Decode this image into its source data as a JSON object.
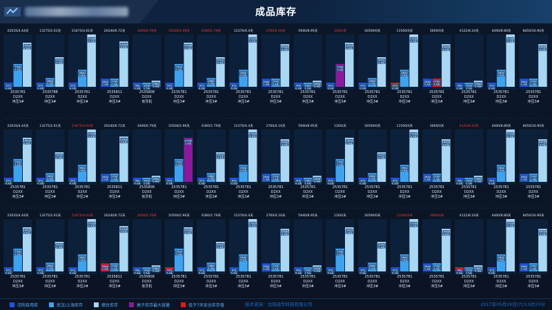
{
  "header": {
    "title": "成品库存"
  },
  "footer": {
    "legend": [
      {
        "label": "沈阳自用库",
        "color": "#1f55e6"
      },
      {
        "label": "武汉/上海库存",
        "color": "#3ea3ef"
      },
      {
        "label": "烟台库存",
        "color": "#a9d6f3"
      },
      {
        "label": "高于库存最大容量",
        "color": "#8a1a9c"
      },
      {
        "label": "低于7天安全库存值",
        "color": "#f01515"
      }
    ],
    "support": "技术支持：沈阳迪华科技有限公司",
    "datetime": "2017年05月20日(六)11时25分"
  },
  "colors": {
    "local": "#1f55e6",
    "wuhan": "#3ea3ef",
    "yantai": "#a9d6f3",
    "over": "#8a1a9c",
    "under": "#f01515",
    "headerNormal": "#e6eefb",
    "headerAlert": "#ff3b3b"
  },
  "chart_data": {
    "type": "bar",
    "series": [
      {
        "name": "沈阳自用库",
        "key": "local"
      },
      {
        "name": "武汉/上海库存",
        "key": "wuhan"
      },
      {
        "name": "烟台库存",
        "key": "yantai"
      }
    ],
    "ylim": [
      0,
      17200
    ],
    "rows": [
      [
        {
          "header": "22635/4.44天",
          "alert": false,
          "local": 675,
          "localDays": "0.3天",
          "wuhan": 7500,
          "wuhanDays": "7.2天",
          "yantai": 14500,
          "yantaiDays": "2.0天",
          "code": "2535781",
          "model": "D2XX",
          "line": "冲压3#"
        },
        {
          "header": "13275/2.61天",
          "alert": false,
          "local": 675,
          "localDays": "0.3天",
          "wuhan": 2880,
          "wuhanDays": "2.9天",
          "yantai": 9720,
          "yantaiDays": "2.4天",
          "code": "2535788",
          "model": "D2XX",
          "line": "冲压3#"
        },
        {
          "header": "23475/4.61天",
          "alert": false,
          "local": 675,
          "localDays": "0.3天",
          "wuhan": 5600,
          "wuhanDays": "5.6天",
          "yantai": 17200,
          "yantaiDays": "2.5天",
          "code": "2535781",
          "model": "D2XX",
          "line": "冲压2#"
        },
        {
          "header": "20240/6.72天",
          "alert": false,
          "local": 2640,
          "localDays": "1.3天",
          "wuhan": 2700,
          "wuhanDays": "2.4天",
          "yantai": 14900,
          "yantaiDays": "3.0天",
          "code": "2535811",
          "model": "D2XX",
          "line": "冲压3#"
        },
        {
          "header": "3400/0.79天",
          "alert": true,
          "local": 400,
          "localDays": "0.3天",
          "wuhan": 1000,
          "wuhanDays": "1.5天",
          "yantai": 2000,
          "yantaiDays": "1.4天",
          "code": "2535808",
          "model": "D2XX",
          "line": "攻牙机"
        },
        {
          "header": "10500/2.96天",
          "alert": true,
          "local": 675,
          "localDays": "0.3天",
          "wuhan": 7500,
          "wuhanDays": "7.2天",
          "yantai": 14500,
          "yantaiDays": "2.0天",
          "code": "2535781",
          "model": "D2XX",
          "line": "冲压3#"
        },
        {
          "header": "6360/1.79天",
          "alert": true,
          "local": 675,
          "localDays": "0.3天",
          "wuhan": 2880,
          "wuhanDays": "2.9天",
          "yantai": 9720,
          "yantaiDays": "2.4天",
          "code": "2535781",
          "model": "D2XX",
          "line": "冲压3#"
        },
        {
          "header": "12370/4.4天",
          "alert": false,
          "local": 675,
          "localDays": "0.3天",
          "wuhan": 5600,
          "wuhanDays": "5.6天",
          "yantai": 17200,
          "yantaiDays": "2.5天",
          "code": "2535781",
          "model": "D2XX",
          "line": "冲压3#"
        },
        {
          "header": "2760/4.16天",
          "alert": true,
          "local": 2640,
          "localDays": "1.3天",
          "wuhan": 2700,
          "wuhanDays": "2.4天",
          "yantai": 14000,
          "yantaiDays": "3.0天",
          "code": "2535781",
          "model": "D2XX",
          "line": "冲压3#"
        },
        {
          "header": "5940/8.95天",
          "alert": false,
          "local": 400,
          "localDays": "0.3天",
          "wuhan": 1000,
          "wuhanDays": "1.5天",
          "yantai": 2000,
          "yantaiDays": "1.4天",
          "code": "2535781",
          "model": "D2XX",
          "line": "冲压3#"
        },
        {
          "header": "1200/天",
          "alert": true,
          "local": 675,
          "localDays": "0.3天",
          "wuhan": 7500,
          "wuhanDays": "7.2天",
          "yantai": 14500,
          "yantaiDays": "2.0天",
          "code": "2535781",
          "model": "D2XX",
          "line": "冲压3#",
          "overStock": "wuhan"
        },
        {
          "header": "16500/0天",
          "alert": false,
          "local": 675,
          "localDays": "0.3天",
          "wuhan": 2880,
          "wuhanDays": "2.9天",
          "yantai": 9720,
          "yantaiDays": "2.4天",
          "code": "2535781",
          "model": "D2XX",
          "line": "冲压3#"
        },
        {
          "header": "11500/0天",
          "alert": false,
          "local": 675,
          "localDays": "0.3天",
          "wuhan": 5600,
          "wuhanDays": "5.6天",
          "yantai": 17200,
          "yantaiDays": "2.5天",
          "code": "2535781",
          "model": "D2XX",
          "line": "冲压3#",
          "underStock": "local"
        },
        {
          "header": "3000/0天",
          "alert": false,
          "local": 2640,
          "localDays": "1.3天",
          "wuhan": 2700,
          "wuhanDays": "2.4天",
          "yantai": 14000,
          "yantaiDays": "3.0天",
          "code": "2535781",
          "model": "D2XX",
          "line": "冲压3#",
          "underStock": "wuhan"
        },
        {
          "header": "4122/8.24天",
          "alert": false,
          "local": 400,
          "localDays": "0.3天",
          "wuhan": 1000,
          "wuhanDays": "1.5天",
          "yantai": 2000,
          "yantaiDays": "1.4天",
          "code": "2535781",
          "model": "D2XX",
          "line": "冲压3#"
        },
        {
          "header": "4400/8.80天",
          "alert": false,
          "local": 675,
          "localDays": "0.3天",
          "wuhan": 5600,
          "wuhanDays": "5.6天",
          "yantai": 17200,
          "yantaiDays": "2.5天",
          "code": "2535781",
          "model": "D2XX",
          "line": "冲压3#"
        },
        {
          "header": "8450/16.90天",
          "alert": false,
          "local": 2640,
          "localDays": "1.3天",
          "wuhan": 2700,
          "wuhanDays": "2.4天",
          "yantai": 14000,
          "yantaiDays": "3.0天",
          "code": "2535781",
          "model": "D2XX",
          "line": "冲压3#"
        }
      ],
      [
        {
          "header": "22635/4.44天",
          "alert": false,
          "local": 675,
          "localDays": "0.3天",
          "wuhan": 7500,
          "wuhanDays": "7.2天",
          "yantai": 14500,
          "yantaiDays": "2.0天",
          "code": "2535781",
          "model": "D2XX",
          "line": "冲压3#"
        },
        {
          "header": "13275/2.61天",
          "alert": false,
          "local": 675,
          "localDays": "0.3天",
          "wuhan": 2880,
          "wuhanDays": "2.9天",
          "yantai": 9720,
          "yantaiDays": "2.4天",
          "code": "2535781",
          "model": "D2XX",
          "line": "冲压3#"
        },
        {
          "header": "23475/4.61天",
          "alert": true,
          "local": 675,
          "localDays": "0.3天",
          "wuhan": 5600,
          "wuhanDays": "5.6天",
          "yantai": 17200,
          "yantaiDays": "2.5天",
          "code": "2535781",
          "model": "D2XX",
          "line": "冲压2#"
        },
        {
          "header": "20240/6.72天",
          "alert": false,
          "local": 2640,
          "localDays": "1.3天",
          "wuhan": 2700,
          "wuhanDays": "2.4天",
          "yantai": 14900,
          "yantaiDays": "3.0天",
          "code": "2535811",
          "model": "D2XX",
          "line": "冲压3#"
        },
        {
          "header": "3400/0.79天",
          "alert": false,
          "local": 400,
          "localDays": "0.3天",
          "wuhan": 1000,
          "wuhanDays": "1.5天",
          "yantai": 2000,
          "yantaiDays": "1.4天",
          "code": "2535808",
          "model": "D2XX",
          "line": "攻牙机"
        },
        {
          "header": "10500/2.96天",
          "alert": false,
          "local": 675,
          "localDays": "0.3天",
          "wuhan": 7500,
          "wuhanDays": "7.2天",
          "yantai": 14500,
          "yantaiDays": "2.0天",
          "code": "2535781",
          "model": "D2XX",
          "line": "冲压3#",
          "overStock": "yantai"
        },
        {
          "header": "6360/1.79天",
          "alert": false,
          "local": 675,
          "localDays": "0.3天",
          "wuhan": 2880,
          "wuhanDays": "2.9天",
          "yantai": 9720,
          "yantaiDays": "2.4天",
          "code": "2535781",
          "model": "D2XX",
          "line": "冲压3#"
        },
        {
          "header": "12370/4.4天",
          "alert": false,
          "local": 675,
          "localDays": "0.3天",
          "wuhan": 5600,
          "wuhanDays": "5.6天",
          "yantai": 17200,
          "yantaiDays": "2.5天",
          "code": "2535781",
          "model": "D2XX",
          "line": "冲压3#"
        },
        {
          "header": "2760/4.16天",
          "alert": false,
          "local": 2640,
          "localDays": "1.3天",
          "wuhan": 2700,
          "wuhanDays": "2.4天",
          "yantai": 14000,
          "yantaiDays": "3.0天",
          "code": "2535781",
          "model": "D2XX",
          "line": "冲压3#"
        },
        {
          "header": "5940/8.95天",
          "alert": false,
          "local": 400,
          "localDays": "0.3天",
          "wuhan": 1000,
          "wuhanDays": "1.5天",
          "yantai": 2000,
          "yantaiDays": "1.4天",
          "code": "2535781",
          "model": "D2XX",
          "line": "冲压3#"
        },
        {
          "header": "1200/天",
          "alert": false,
          "local": 675,
          "localDays": "0.3天",
          "wuhan": 7500,
          "wuhanDays": "7.2天",
          "yantai": 14500,
          "yantaiDays": "2.0天",
          "code": "2535781",
          "model": "D2XX",
          "line": "冲压3#"
        },
        {
          "header": "16500/0天",
          "alert": false,
          "local": 675,
          "localDays": "0.3天",
          "wuhan": 2880,
          "wuhanDays": "2.9天",
          "yantai": 9720,
          "yantaiDays": "2.4天",
          "code": "2535781",
          "model": "D2XX",
          "line": "冲压3#"
        },
        {
          "header": "11500/0天",
          "alert": false,
          "local": 675,
          "localDays": "0.3天",
          "wuhan": 5600,
          "wuhanDays": "5.6天",
          "yantai": 17200,
          "yantaiDays": "2.5天",
          "code": "2535781",
          "model": "D2XX",
          "line": "冲压3#"
        },
        {
          "header": "3000/0天",
          "alert": false,
          "local": 2640,
          "localDays": "1.3天",
          "wuhan": 2700,
          "wuhanDays": "2.4天",
          "yantai": 14000,
          "yantaiDays": "3.0天",
          "code": "2535781",
          "model": "D2XX",
          "line": "冲压3#"
        },
        {
          "header": "4122/8.24天",
          "alert": true,
          "local": 400,
          "localDays": "0.3天",
          "wuhan": 1000,
          "wuhanDays": "1.5天",
          "yantai": 2000,
          "yantaiDays": "1.4天",
          "code": "2535781",
          "model": "D2XX",
          "line": "冲压3#"
        },
        {
          "header": "4400/8.80天",
          "alert": false,
          "local": 675,
          "localDays": "0.3天",
          "wuhan": 5600,
          "wuhanDays": "5.6天",
          "yantai": 17200,
          "yantaiDays": "2.5天",
          "code": "2535781",
          "model": "D2XX",
          "line": "冲压3#"
        },
        {
          "header": "8450/16.90天",
          "alert": false,
          "local": 2640,
          "localDays": "1.3天",
          "wuhan": 2700,
          "wuhanDays": "2.4天",
          "yantai": 14000,
          "yantaiDays": "3.0天",
          "code": "2535781",
          "model": "D2XX",
          "line": "冲压3#"
        }
      ],
      [
        {
          "header": "22635/4.44天",
          "alert": false,
          "local": 675,
          "localDays": "0.3天",
          "wuhan": 7500,
          "wuhanDays": "7.2天",
          "yantai": 14500,
          "yantaiDays": "2.0天",
          "code": "2535781",
          "model": "D2XX",
          "line": "冲压3#"
        },
        {
          "header": "13275/2.61天",
          "alert": false,
          "local": 675,
          "localDays": "0.3天",
          "wuhan": 2880,
          "wuhanDays": "2.9天",
          "yantai": 9720,
          "yantaiDays": "2.4天",
          "code": "2535781",
          "model": "D2XX",
          "line": "冲压3#"
        },
        {
          "header": "23475/4.61天",
          "alert": true,
          "local": 675,
          "localDays": "0.3天",
          "wuhan": 5600,
          "wuhanDays": "5.6天",
          "yantai": 17200,
          "yantaiDays": "2.5天",
          "code": "2535781",
          "model": "D2XX",
          "line": "冲压2#"
        },
        {
          "header": "20240/6.72天",
          "alert": false,
          "local": 2640,
          "localDays": "1.3天",
          "wuhan": 2700,
          "wuhanDays": "2.4天",
          "yantai": 14900,
          "yantaiDays": "3.0天",
          "code": "2535811",
          "model": "D2XX",
          "line": "冲压3#",
          "underStock": "local"
        },
        {
          "header": "3400/0.79天",
          "alert": true,
          "local": 400,
          "localDays": "0.3天",
          "wuhan": 1000,
          "wuhanDays": "1.5天",
          "yantai": 2000,
          "yantaiDays": "1.4天",
          "code": "2535808",
          "model": "D2XX",
          "line": "攻牙机"
        },
        {
          "header": "10500/2.96天",
          "alert": false,
          "local": 675,
          "localDays": "0.3天",
          "wuhan": 7500,
          "wuhanDays": "7.2天",
          "yantai": 14500,
          "yantaiDays": "2.0天",
          "code": "2535781",
          "model": "D2XX",
          "line": "冲压3#",
          "underStock": "local"
        },
        {
          "header": "6360/1.79天",
          "alert": false,
          "local": 675,
          "localDays": "0.3天",
          "wuhan": 2880,
          "wuhanDays": "2.9天",
          "yantai": 9720,
          "yantaiDays": "2.4天",
          "code": "2535781",
          "model": "D2XX",
          "line": "冲压3#"
        },
        {
          "header": "12370/4.4天",
          "alert": false,
          "local": 675,
          "localDays": "0.3天",
          "wuhan": 5600,
          "wuhanDays": "5.6天",
          "yantai": 17200,
          "yantaiDays": "2.5天",
          "code": "2535781",
          "model": "D2XX",
          "line": "冲压3#"
        },
        {
          "header": "2760/4.16天",
          "alert": false,
          "local": 2640,
          "localDays": "1.3天",
          "wuhan": 2700,
          "wuhanDays": "2.4天",
          "yantai": 14000,
          "yantaiDays": "3.0天",
          "code": "2535781",
          "model": "D2XX",
          "line": "冲压3#"
        },
        {
          "header": "5940/8.95天",
          "alert": false,
          "local": 400,
          "localDays": "0.3天",
          "wuhan": 1000,
          "wuhanDays": "1.5天",
          "yantai": 2000,
          "yantaiDays": "1.4天",
          "code": "2535781",
          "model": "D2XX",
          "line": "冲压3#"
        },
        {
          "header": "1200/天",
          "alert": false,
          "local": 675,
          "localDays": "0.3天",
          "wuhan": 7500,
          "wuhanDays": "7.2天",
          "yantai": 14500,
          "yantaiDays": "2.0天",
          "code": "2535781",
          "model": "D2XX",
          "line": "冲压3#"
        },
        {
          "header": "16500/0天",
          "alert": false,
          "local": 675,
          "localDays": "0.3天",
          "wuhan": 2880,
          "wuhanDays": "2.9天",
          "yantai": 9720,
          "yantaiDays": "2.4天",
          "code": "2535781",
          "model": "D2XX",
          "line": "冲压3#"
        },
        {
          "header": "11500/0天",
          "alert": true,
          "local": 675,
          "localDays": "0.3天",
          "wuhan": 5600,
          "wuhanDays": "5.6天",
          "yantai": 17200,
          "yantaiDays": "2.5天",
          "code": "2535781",
          "model": "D2XX",
          "line": "冲压3#"
        },
        {
          "header": "3000/0天",
          "alert": true,
          "local": 2640,
          "localDays": "1.3天",
          "wuhan": 2700,
          "wuhanDays": "2.4天",
          "yantai": 14000,
          "yantaiDays": "3.0天",
          "code": "2535781",
          "model": "D2XX",
          "line": "冲压3#"
        },
        {
          "header": "4122/8.24天",
          "alert": false,
          "local": 400,
          "localDays": "0.3天",
          "wuhan": 1000,
          "wuhanDays": "1.5天",
          "yantai": 2000,
          "yantaiDays": "1.4天",
          "code": "2535781",
          "model": "D2XX",
          "line": "冲压3#",
          "underStock": "local"
        },
        {
          "header": "4400/8.80天",
          "alert": false,
          "local": 675,
          "localDays": "0.3天",
          "wuhan": 5600,
          "wuhanDays": "5.6天",
          "yantai": 17200,
          "yantaiDays": "2.5天",
          "code": "2535781",
          "model": "D2XX",
          "line": "冲压3#"
        },
        {
          "header": "8450/16.90天",
          "alert": false,
          "local": 2640,
          "localDays": "1.3天",
          "wuhan": 2700,
          "wuhanDays": "2.4天",
          "yantai": 14000,
          "yantaiDays": "3.0天",
          "code": "2535781",
          "model": "D2XX",
          "line": "冲压3#"
        }
      ]
    ]
  }
}
